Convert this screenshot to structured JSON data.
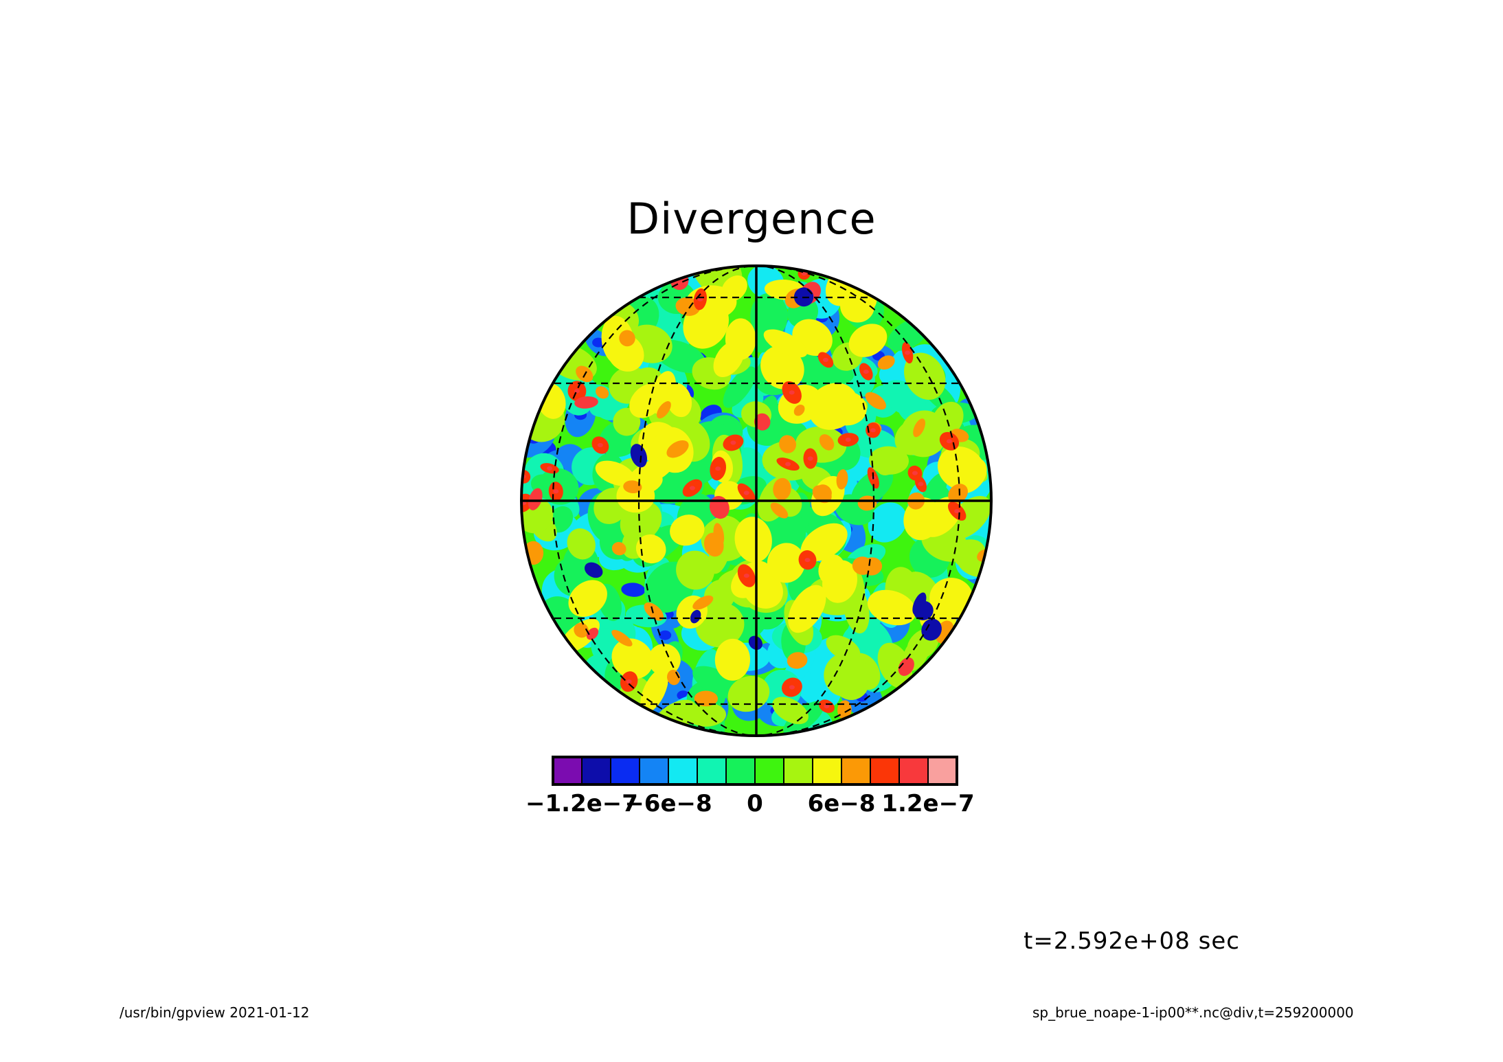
{
  "title": "Divergence",
  "time_label": "t=2.592e+08 sec",
  "footer_left": "/usr/bin/gpview  2021-01-12",
  "footer_right": "sp_brue_noape-1-ip00**.nc@div,t=259200000",
  "colorbar": {
    "colors": [
      "#7b0cb0",
      "#0d0daa",
      "#0a2cf2",
      "#1484f5",
      "#13e9f2",
      "#11f4b2",
      "#16f15a",
      "#3ef40f",
      "#a7f410",
      "#f6f60e",
      "#fb9906",
      "#fb3607",
      "#f8393c",
      "#f9a09e"
    ],
    "tick_labels": [
      {
        "text": "−1.2e−7",
        "value": -1.2e-07
      },
      {
        "text": "−6e−8",
        "value": -6e-08
      },
      {
        "text": "0",
        "value": 0
      },
      {
        "text": "6e−8",
        "value": 6e-08
      },
      {
        "text": "1.2e−7",
        "value": 1.2e-07
      }
    ],
    "range": [
      -1.4e-07,
      1.4e-07
    ]
  },
  "map": {
    "projection": "orthographic",
    "field": "divergence",
    "meridian_lines": "dashed",
    "equator_and_central_meridian": "solid"
  }
}
